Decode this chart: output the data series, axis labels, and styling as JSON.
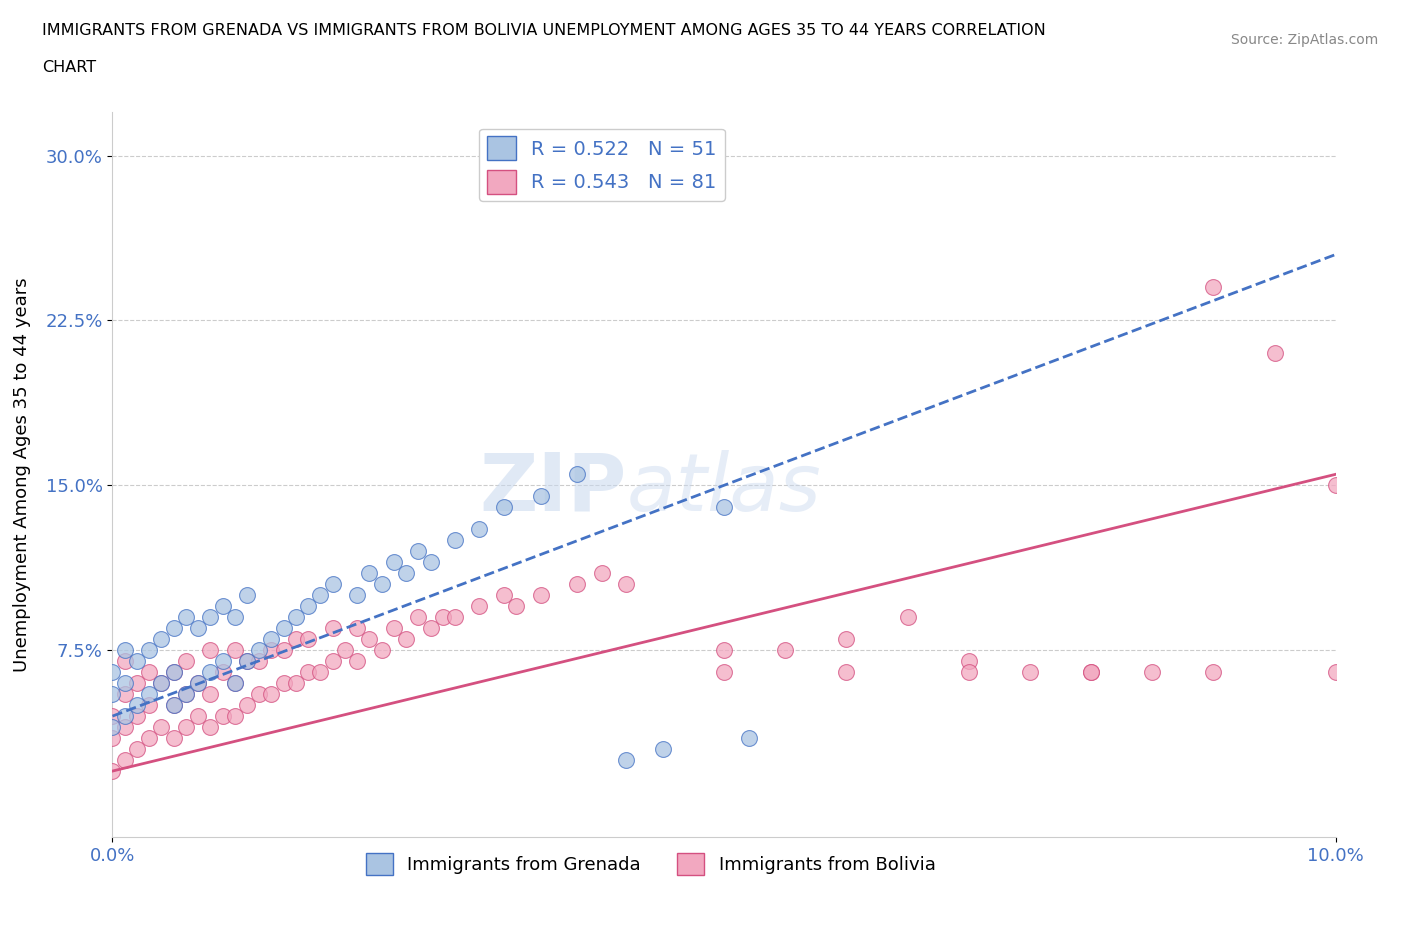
{
  "title_line1": "IMMIGRANTS FROM GRENADA VS IMMIGRANTS FROM BOLIVIA UNEMPLOYMENT AMONG AGES 35 TO 44 YEARS CORRELATION",
  "title_line2": "CHART",
  "source": "Source: ZipAtlas.com",
  "ylabel": "Unemployment Among Ages 35 to 44 years",
  "xlim": [
    0.0,
    0.1
  ],
  "ylim": [
    -0.01,
    0.32
  ],
  "xticks": [
    0.0,
    0.1
  ],
  "xtick_labels": [
    "0.0%",
    "10.0%"
  ],
  "yticks": [
    0.075,
    0.15,
    0.225,
    0.3
  ],
  "ytick_labels": [
    "7.5%",
    "15.0%",
    "22.5%",
    "30.0%"
  ],
  "grenada_color": "#aac4e2",
  "bolivia_color": "#f2a8c0",
  "grenada_line_color": "#4472c4",
  "bolivia_line_color": "#d45080",
  "grenada_R": 0.522,
  "grenada_N": 51,
  "bolivia_R": 0.543,
  "bolivia_N": 81,
  "watermark_zip": "ZIP",
  "watermark_atlas": "atlas",
  "legend_label_grenada": "Immigrants from Grenada",
  "legend_label_bolivia": "Immigrants from Bolivia",
  "grenada_scatter_x": [
    0.0,
    0.0,
    0.0,
    0.001,
    0.001,
    0.001,
    0.002,
    0.002,
    0.003,
    0.003,
    0.004,
    0.004,
    0.005,
    0.005,
    0.005,
    0.006,
    0.006,
    0.007,
    0.007,
    0.008,
    0.008,
    0.009,
    0.009,
    0.01,
    0.01,
    0.011,
    0.011,
    0.012,
    0.013,
    0.014,
    0.015,
    0.016,
    0.017,
    0.018,
    0.02,
    0.021,
    0.022,
    0.023,
    0.024,
    0.025,
    0.026,
    0.028,
    0.03,
    0.032,
    0.035,
    0.038,
    0.04,
    0.042,
    0.045,
    0.05,
    0.052
  ],
  "grenada_scatter_y": [
    0.04,
    0.055,
    0.065,
    0.045,
    0.06,
    0.075,
    0.05,
    0.07,
    0.055,
    0.075,
    0.06,
    0.08,
    0.05,
    0.065,
    0.085,
    0.055,
    0.09,
    0.06,
    0.085,
    0.065,
    0.09,
    0.07,
    0.095,
    0.06,
    0.09,
    0.07,
    0.1,
    0.075,
    0.08,
    0.085,
    0.09,
    0.095,
    0.1,
    0.105,
    0.1,
    0.11,
    0.105,
    0.115,
    0.11,
    0.12,
    0.115,
    0.125,
    0.13,
    0.14,
    0.145,
    0.155,
    0.29,
    0.025,
    0.03,
    0.14,
    0.035
  ],
  "bolivia_scatter_x": [
    0.0,
    0.0,
    0.0,
    0.001,
    0.001,
    0.001,
    0.001,
    0.002,
    0.002,
    0.002,
    0.003,
    0.003,
    0.003,
    0.004,
    0.004,
    0.005,
    0.005,
    0.005,
    0.006,
    0.006,
    0.006,
    0.007,
    0.007,
    0.008,
    0.008,
    0.008,
    0.009,
    0.009,
    0.01,
    0.01,
    0.01,
    0.011,
    0.011,
    0.012,
    0.012,
    0.013,
    0.013,
    0.014,
    0.014,
    0.015,
    0.015,
    0.016,
    0.016,
    0.017,
    0.018,
    0.018,
    0.019,
    0.02,
    0.02,
    0.021,
    0.022,
    0.023,
    0.024,
    0.025,
    0.026,
    0.027,
    0.028,
    0.03,
    0.032,
    0.033,
    0.035,
    0.038,
    0.04,
    0.042,
    0.05,
    0.055,
    0.06,
    0.065,
    0.07,
    0.075,
    0.08,
    0.085,
    0.09,
    0.095,
    0.05,
    0.06,
    0.07,
    0.08,
    0.09,
    0.1,
    0.1
  ],
  "bolivia_scatter_y": [
    0.02,
    0.035,
    0.045,
    0.025,
    0.04,
    0.055,
    0.07,
    0.03,
    0.045,
    0.06,
    0.035,
    0.05,
    0.065,
    0.04,
    0.06,
    0.035,
    0.05,
    0.065,
    0.04,
    0.055,
    0.07,
    0.045,
    0.06,
    0.04,
    0.055,
    0.075,
    0.045,
    0.065,
    0.045,
    0.06,
    0.075,
    0.05,
    0.07,
    0.055,
    0.07,
    0.055,
    0.075,
    0.06,
    0.075,
    0.06,
    0.08,
    0.065,
    0.08,
    0.065,
    0.07,
    0.085,
    0.075,
    0.07,
    0.085,
    0.08,
    0.075,
    0.085,
    0.08,
    0.09,
    0.085,
    0.09,
    0.09,
    0.095,
    0.1,
    0.095,
    0.1,
    0.105,
    0.11,
    0.105,
    0.065,
    0.075,
    0.08,
    0.09,
    0.07,
    0.065,
    0.065,
    0.065,
    0.24,
    0.21,
    0.075,
    0.065,
    0.065,
    0.065,
    0.065,
    0.15,
    0.065
  ],
  "grenada_line_x": [
    0.0,
    0.1
  ],
  "grenada_line_y": [
    0.045,
    0.255
  ],
  "bolivia_line_x": [
    0.0,
    0.1
  ],
  "bolivia_line_y": [
    0.02,
    0.155
  ]
}
